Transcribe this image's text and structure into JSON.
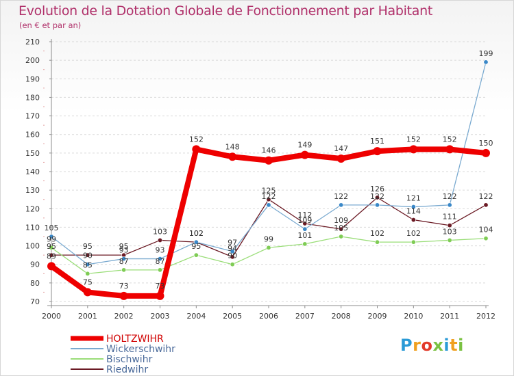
{
  "colors": {
    "title": "#b0306a",
    "axis": "#8c8c8c",
    "grid": "#d9d9d9",
    "tick_marks": "#e3a0a0"
  },
  "chart_data": {
    "type": "line",
    "title": "Evolution de la Dotation Globale de Fonctionnement par Habitant",
    "subtitle": "(en € et par an)",
    "xlabel": "",
    "ylabel": "",
    "ylim": [
      70,
      210
    ],
    "yticks": [
      70,
      80,
      90,
      100,
      110,
      120,
      130,
      140,
      150,
      160,
      170,
      180,
      190,
      200,
      210
    ],
    "grid": "dashed horizontal",
    "legend_position": "bottom-left",
    "categories": [
      "2000",
      "2001",
      "2002",
      "2003",
      "2004",
      "2005",
      "2006",
      "2007",
      "2008",
      "2009",
      "2010",
      "2011",
      "2012"
    ],
    "series": [
      {
        "name": "Riedwihr",
        "color": "#6b1a24",
        "dot": "#6b1a24",
        "width": 1.3,
        "r": 3.2,
        "values": [
          95,
          95,
          95,
          103,
          102,
          94,
          125,
          112,
          109,
          126,
          114,
          111,
          122
        ]
      },
      {
        "name": "Bischwihr",
        "color": "#99dd77",
        "dot": "#7fcc55",
        "width": 1.3,
        "r": 3.2,
        "values": [
          99,
          85,
          87,
          87,
          95,
          90,
          99,
          101,
          105,
          102,
          102,
          103,
          104
        ]
      },
      {
        "name": "Wickerschwihr",
        "color": "#7aaad0",
        "dot": "#3a88c8",
        "width": 1.3,
        "r": 3.2,
        "values": [
          105,
          90,
          93,
          93,
          102,
          97,
          122,
          109,
          122,
          122,
          121,
          122,
          199
        ]
      },
      {
        "name": "HOLTZWIHR",
        "color": "#ee0000",
        "dot": "#ee0000",
        "width": 8,
        "r": 6,
        "values": [
          89,
          75,
          73,
          73,
          152,
          148,
          146,
          149,
          147,
          151,
          152,
          152,
          150
        ]
      }
    ],
    "legend_order": [
      "HOLTZWIHR",
      "Wickerschwihr",
      "Bischwihr",
      "Riedwihr"
    ]
  },
  "logo": {
    "letters": [
      "P",
      "r",
      "o",
      "x",
      "i",
      "t",
      "i"
    ],
    "colors": [
      "#2a9ad6",
      "#f0a020",
      "#e23a2a",
      "#7ac142",
      "#2a9ad6",
      "#f0a020",
      "#7ac142"
    ]
  }
}
